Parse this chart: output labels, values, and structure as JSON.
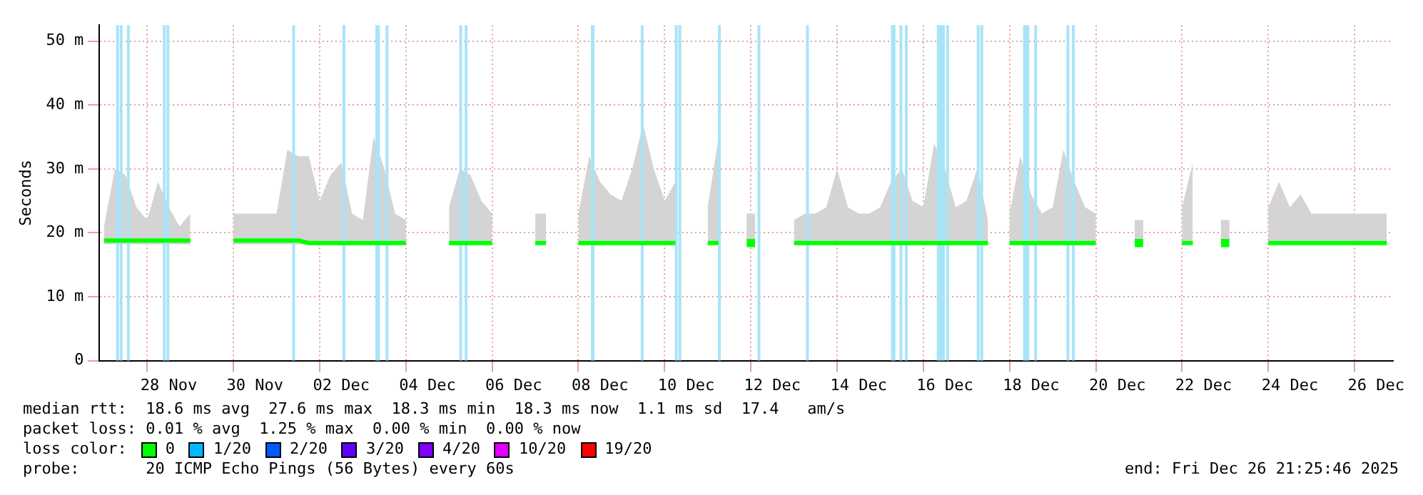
{
  "chart_data": {
    "type": "line",
    "ylabel": "Seconds",
    "legend_title": "loss color:",
    "legend": "bottom",
    "grid": true,
    "xlim": [
      "2025-11-26T21:26",
      "2025-12-26T21:26"
    ],
    "xticks": [
      {
        "value": "2025-11-28T00:00",
        "label": null
      },
      {
        "value": "2025-11-28T12:00",
        "label": "28 Nov"
      },
      {
        "value": "2025-11-30T00:00",
        "label": null
      },
      {
        "value": "2025-11-30T12:00",
        "label": "30 Nov"
      },
      {
        "value": "2025-12-02T00:00",
        "label": null
      },
      {
        "value": "2025-12-02T12:00",
        "label": "02 Dec"
      },
      {
        "value": "2025-12-04T00:00",
        "label": null
      },
      {
        "value": "2025-12-04T12:00",
        "label": "04 Dec"
      },
      {
        "value": "2025-12-06T00:00",
        "label": null
      },
      {
        "value": "2025-12-06T12:00",
        "label": "06 Dec"
      },
      {
        "value": "2025-12-08T00:00",
        "label": null
      },
      {
        "value": "2025-12-08T12:00",
        "label": "08 Dec"
      },
      {
        "value": "2025-12-10T00:00",
        "label": null
      },
      {
        "value": "2025-12-10T12:00",
        "label": "10 Dec"
      },
      {
        "value": "2025-12-12T00:00",
        "label": null
      },
      {
        "value": "2025-12-12T12:00",
        "label": "12 Dec"
      },
      {
        "value": "2025-12-14T00:00",
        "label": null
      },
      {
        "value": "2025-12-14T12:00",
        "label": "14 Dec"
      },
      {
        "value": "2025-12-16T00:00",
        "label": null
      },
      {
        "value": "2025-12-16T12:00",
        "label": "16 Dec"
      },
      {
        "value": "2025-12-18T00:00",
        "label": null
      },
      {
        "value": "2025-12-18T12:00",
        "label": "18 Dec"
      },
      {
        "value": "2025-12-20T00:00",
        "label": null
      },
      {
        "value": "2025-12-20T12:00",
        "label": "20 Dec"
      },
      {
        "value": "2025-12-22T00:00",
        "label": null
      },
      {
        "value": "2025-12-22T12:00",
        "label": "22 Dec"
      },
      {
        "value": "2025-12-24T00:00",
        "label": null
      },
      {
        "value": "2025-12-24T12:00",
        "label": "24 Dec"
      },
      {
        "value": "2025-12-26T00:00",
        "label": null
      },
      {
        "value": "2025-12-26T12:00",
        "label": "26 Dec"
      }
    ],
    "ylim": [
      0,
      52.5
    ],
    "yticks": [
      0,
      {
        "value": 10,
        "label": "10 m"
      },
      {
        "value": 20,
        "label": "20 m"
      },
      {
        "value": 30,
        "label": "30 m"
      },
      {
        "value": 40,
        "label": "40 m"
      },
      {
        "value": 50,
        "label": "50 m"
      }
    ],
    "x": [
      "2025-11-27T00:00",
      "2025-11-27T06:00",
      "2025-11-27T12:00",
      "2025-11-27T18:00",
      "2025-11-28T00:00",
      "2025-11-28T06:00",
      "2025-11-28T12:00",
      "2025-11-28T18:00",
      "2025-11-29T00:00",
      "2025-11-29T06:00",
      "2025-11-29T12:00",
      "2025-11-29T18:00",
      "2025-11-30T00:00",
      "2025-11-30T06:00",
      "2025-11-30T12:00",
      "2025-11-30T18:00",
      "2025-12-01T00:00",
      "2025-12-01T06:00",
      "2025-12-01T12:00",
      "2025-12-01T18:00",
      "2025-12-02T00:00",
      "2025-12-02T06:00",
      "2025-12-02T12:00",
      "2025-12-02T18:00",
      "2025-12-03T00:00",
      "2025-12-03T06:00",
      "2025-12-03T12:00",
      "2025-12-03T18:00",
      "2025-12-04T00:00",
      "2025-12-04T06:00",
      "2025-12-04T12:00",
      "2025-12-04T18:00",
      "2025-12-05T00:00",
      "2025-12-05T06:00",
      "2025-12-05T12:00",
      "2025-12-05T18:00",
      "2025-12-06T00:00",
      "2025-12-06T06:00",
      "2025-12-06T12:00",
      "2025-12-06T18:00",
      "2025-12-07T00:00",
      "2025-12-07T06:00",
      "2025-12-07T12:00",
      "2025-12-07T18:00",
      "2025-12-08T00:00",
      "2025-12-08T06:00",
      "2025-12-08T12:00",
      "2025-12-08T18:00",
      "2025-12-09T00:00",
      "2025-12-09T06:00",
      "2025-12-09T12:00",
      "2025-12-09T18:00",
      "2025-12-10T00:00",
      "2025-12-10T06:00",
      "2025-12-10T12:00",
      "2025-12-10T18:00",
      "2025-12-11T00:00",
      "2025-12-11T06:00",
      "2025-12-11T12:00",
      "2025-12-11T18:00",
      "2025-12-12T00:00",
      "2025-12-12T06:00",
      "2025-12-12T12:00",
      "2025-12-12T18:00",
      "2025-12-13T00:00",
      "2025-12-13T06:00",
      "2025-12-13T12:00",
      "2025-12-13T18:00",
      "2025-12-14T00:00",
      "2025-12-14T06:00",
      "2025-12-14T12:00",
      "2025-12-14T18:00",
      "2025-12-15T00:00",
      "2025-12-15T06:00",
      "2025-12-15T12:00",
      "2025-12-15T18:00",
      "2025-12-16T00:00",
      "2025-12-16T06:00",
      "2025-12-16T12:00",
      "2025-12-16T18:00",
      "2025-12-17T00:00",
      "2025-12-17T06:00",
      "2025-12-17T12:00",
      "2025-12-17T18:00",
      "2025-12-18T00:00",
      "2025-12-18T06:00",
      "2025-12-18T12:00",
      "2025-12-18T18:00",
      "2025-12-19T00:00",
      "2025-12-19T06:00",
      "2025-12-19T12:00",
      "2025-12-19T18:00",
      "2025-12-20T00:00",
      "2025-12-20T06:00",
      "2025-12-20T12:00",
      "2025-12-20T18:00",
      "2025-12-21T00:00",
      "2025-12-21T06:00",
      "2025-12-21T12:00",
      "2025-12-21T18:00",
      "2025-12-22T00:00",
      "2025-12-22T06:00",
      "2025-12-22T12:00",
      "2025-12-22T18:00",
      "2025-12-23T00:00",
      "2025-12-23T06:00",
      "2025-12-23T12:00",
      "2025-12-23T18:00",
      "2025-12-24T00:00",
      "2025-12-24T06:00",
      "2025-12-24T12:00",
      "2025-12-24T18:00",
      "2025-12-25T00:00",
      "2025-12-25T06:00",
      "2025-12-25T12:00",
      "2025-12-25T18:00",
      "2025-12-26T00:00",
      "2025-12-26T06:00",
      "2025-12-26T12:00",
      "2025-12-26T18:00"
    ],
    "series": [
      {
        "name": "0",
        "color": "#00ff00",
        "values": [
          18.8,
          18.8,
          18.8,
          18.8,
          18.8,
          18.8,
          18.8,
          18.8,
          18.8,
          null,
          null,
          null,
          18.8,
          18.8,
          18.8,
          18.8,
          18.8,
          18.8,
          18.8,
          18.4,
          18.4,
          18.4,
          18.4,
          18.4,
          18.4,
          18.4,
          18.4,
          18.4,
          18.4,
          null,
          null,
          null,
          18.4,
          18.4,
          18.4,
          18.4,
          18.4,
          null,
          null,
          null,
          18.4,
          18.4,
          null,
          null,
          18.4,
          18.4,
          18.4,
          18.4,
          18.4,
          18.4,
          18.4,
          18.4,
          18.4,
          18.4,
          null,
          null,
          18.4,
          18.4,
          null,
          null,
          18.4,
          null,
          null,
          null,
          18.4,
          18.4,
          18.4,
          18.4,
          18.4,
          18.4,
          18.4,
          18.4,
          18.4,
          18.4,
          18.4,
          18.4,
          18.4,
          18.4,
          18.4,
          18.4,
          18.4,
          18.4,
          18.4,
          null,
          18.4,
          18.4,
          18.4,
          18.4,
          18.4,
          18.4,
          18.4,
          18.4,
          18.4,
          null,
          null,
          null,
          18.4,
          null,
          null,
          null,
          18.4,
          18.4,
          null,
          null,
          18.4,
          null,
          null,
          null,
          18.4,
          18.4,
          18.4,
          18.4,
          18.4,
          18.4,
          18.4,
          18.4,
          18.4,
          18.4,
          18.4,
          18.4
        ],
        "lower": [
          18.2,
          18.2,
          18.2,
          18.2,
          18.2,
          18.2,
          18.2,
          18.2,
          18.2,
          null,
          null,
          null,
          18.2,
          18.2,
          18.2,
          18.2,
          18.2,
          18.2,
          18.2,
          18.2,
          18.2,
          18.2,
          18.2,
          18.2,
          18.2,
          18.2,
          18.2,
          18.2,
          18.2,
          null,
          null,
          null,
          18.2,
          18.2,
          18.2,
          18.2,
          18.2,
          null,
          null,
          null,
          18.2,
          18.2,
          null,
          null,
          18.2,
          18.2,
          18.2,
          18.2,
          18.2,
          18.2,
          18.2,
          18.2,
          18.2,
          18.2,
          null,
          null,
          18.2,
          18.2,
          null,
          null,
          18.2,
          null,
          null,
          null,
          18.2,
          18.2,
          18.2,
          18.2,
          18.2,
          18.2,
          18.2,
          18.2,
          18.2,
          18.2,
          18.2,
          18.2,
          18.2,
          18.2,
          18.2,
          18.2,
          18.2,
          18.2,
          18.2,
          null,
          18.2,
          18.2,
          18.2,
          18.2,
          18.2,
          18.2,
          18.2,
          18.2,
          18.2,
          null,
          null,
          null,
          18.2,
          null,
          null,
          null,
          18.2,
          18.2,
          null,
          null,
          18.2,
          null,
          null,
          null,
          18.2,
          18.2,
          18.2,
          18.2,
          18.2,
          18.2,
          18.2,
          18.2,
          18.2,
          18.2,
          18.2,
          18.2
        ],
        "upper": [
          21,
          30,
          29,
          24,
          22,
          28,
          24,
          21,
          23,
          null,
          null,
          null,
          23,
          23,
          23,
          23,
          23,
          33,
          32,
          32,
          25,
          29,
          31,
          23,
          22,
          35,
          30,
          23,
          22,
          null,
          null,
          null,
          24,
          30,
          29,
          25,
          23,
          null,
          null,
          null,
          23,
          23,
          null,
          null,
          23,
          32,
          28,
          26,
          25,
          30,
          37,
          30,
          25,
          28,
          null,
          null,
          24,
          35,
          null,
          null,
          23,
          null,
          null,
          null,
          22,
          23,
          23,
          24,
          30,
          24,
          23,
          23,
          24,
          28,
          30,
          25,
          24,
          34,
          30,
          24,
          25,
          30,
          22,
          null,
          23,
          32,
          26,
          23,
          24,
          33,
          28,
          24,
          23,
          null,
          null,
          null,
          22,
          null,
          null,
          null,
          24,
          31,
          null,
          null,
          22,
          null,
          null,
          null,
          24,
          28,
          24,
          26,
          23,
          23,
          23,
          23,
          23,
          23,
          23,
          23
        ]
      },
      {
        "name": "1/20",
        "color": "#00b8ff",
        "values": [
          null,
          null,
          null,
          null,
          null,
          null,
          null,
          null,
          null,
          null,
          null,
          null,
          null,
          null,
          null,
          null,
          null,
          null,
          null,
          null,
          null,
          null,
          null,
          null,
          null,
          null,
          null,
          null,
          null,
          null,
          null,
          null,
          null,
          null,
          null,
          null,
          null,
          null,
          null,
          null,
          null,
          null,
          null,
          null,
          null,
          null,
          null,
          null,
          null,
          null,
          null,
          null,
          null,
          null,
          null,
          null,
          null,
          null,
          null,
          null,
          null,
          null,
          null,
          null,
          null,
          null,
          null,
          null,
          null,
          null,
          null,
          null,
          null,
          null,
          null,
          null,
          null,
          null,
          null,
          null,
          null,
          null,
          null,
          null,
          null,
          null,
          null,
          null,
          null,
          null,
          null,
          null,
          null,
          null,
          null,
          null,
          null,
          null,
          null,
          null,
          null,
          null,
          null,
          null,
          null,
          null,
          null,
          null,
          null,
          null,
          null,
          null,
          null,
          null,
          null,
          null,
          null,
          null,
          null,
          null
        ]
      },
      {
        "name": "2/20",
        "color": "#0059ff",
        "values": [
          null,
          null,
          null,
          null,
          null,
          null,
          null,
          null,
          null,
          null,
          null,
          null,
          null,
          null,
          null,
          null,
          null,
          null,
          null,
          null,
          null,
          null,
          null,
          null,
          null,
          null,
          null,
          null,
          null,
          null,
          null,
          null,
          null,
          null,
          null,
          null,
          null,
          null,
          null,
          null,
          null,
          null,
          null,
          null,
          null,
          null,
          null,
          null,
          null,
          null,
          null,
          null,
          null,
          null,
          null,
          null,
          null,
          null,
          null,
          null,
          null,
          null,
          null,
          null,
          null,
          null,
          null,
          null,
          null,
          null,
          null,
          null,
          null,
          null,
          null,
          null,
          null,
          null,
          null,
          null,
          null,
          null,
          null,
          null,
          null,
          null,
          null,
          null,
          null,
          null,
          null,
          null,
          null,
          null,
          null,
          null,
          null,
          null,
          null,
          null,
          null,
          null,
          null,
          null,
          null,
          null,
          null,
          null,
          null,
          null,
          null,
          null,
          null,
          null,
          null,
          null,
          null,
          null,
          null,
          null
        ]
      },
      {
        "name": "3/20",
        "color": "#5e00ff",
        "values": [
          null,
          null,
          null,
          null,
          null,
          null,
          null,
          null,
          null,
          null,
          null,
          null,
          null,
          null,
          null,
          null,
          null,
          null,
          null,
          null,
          null,
          null,
          null,
          null,
          null,
          null,
          null,
          null,
          null,
          null,
          null,
          null,
          null,
          null,
          null,
          null,
          null,
          null,
          null,
          null,
          null,
          null,
          null,
          null,
          null,
          null,
          null,
          null,
          null,
          null,
          null,
          null,
          null,
          null,
          null,
          null,
          null,
          null,
          null,
          null,
          null,
          null,
          null,
          null,
          null,
          null,
          null,
          null,
          null,
          null,
          null,
          null,
          null,
          null,
          null,
          null,
          null,
          null,
          null,
          null,
          null,
          null,
          null,
          null,
          null,
          null,
          null,
          null,
          null,
          null,
          null,
          null,
          null,
          null,
          null,
          null,
          null,
          null,
          null,
          null,
          null,
          null,
          null,
          null,
          null,
          null,
          null,
          null,
          null,
          null,
          null,
          null,
          null,
          null,
          null,
          null,
          null,
          null,
          null,
          null
        ]
      },
      {
        "name": "4/20",
        "color": "#7e00ff",
        "values": [
          null,
          null,
          null,
          null,
          null,
          null,
          null,
          null,
          null,
          null,
          null,
          null,
          null,
          null,
          null,
          null,
          null,
          null,
          null,
          null,
          null,
          null,
          null,
          null,
          null,
          null,
          null,
          null,
          null,
          null,
          null,
          null,
          null,
          null,
          null,
          null,
          null,
          null,
          null,
          null,
          null,
          null,
          null,
          null,
          null,
          null,
          null,
          null,
          null,
          null,
          null,
          null,
          null,
          null,
          null,
          null,
          null,
          null,
          null,
          null,
          null,
          null,
          null,
          null,
          null,
          null,
          null,
          null,
          null,
          null,
          null,
          null,
          null,
          null,
          null,
          null,
          null,
          null,
          null,
          null,
          null,
          null,
          null,
          null,
          null,
          null,
          null,
          null,
          null,
          null,
          null,
          null,
          null,
          null,
          null,
          null,
          null,
          null,
          null,
          null,
          null,
          null,
          null,
          null,
          null,
          null,
          null,
          null,
          null,
          null,
          null,
          null,
          null,
          null,
          null,
          null,
          null,
          null,
          null,
          null
        ]
      },
      {
        "name": "10/20",
        "color": "#dd00ff",
        "values": [
          null,
          null,
          null,
          null,
          null,
          null,
          null,
          null,
          null,
          null,
          null,
          null,
          null,
          null,
          null,
          null,
          null,
          null,
          null,
          null,
          null,
          null,
          null,
          null,
          null,
          null,
          null,
          null,
          null,
          null,
          null,
          null,
          null,
          null,
          null,
          null,
          null,
          null,
          null,
          null,
          null,
          null,
          null,
          null,
          null,
          null,
          null,
          null,
          null,
          null,
          null,
          null,
          null,
          null,
          null,
          null,
          null,
          null,
          null,
          null,
          null,
          null,
          null,
          null,
          null,
          null,
          null,
          null,
          null,
          null,
          null,
          null,
          null,
          null,
          null,
          null,
          null,
          null,
          null,
          null,
          null,
          null,
          null,
          null,
          null,
          null,
          null,
          null,
          null,
          null,
          null,
          null,
          null,
          null,
          null,
          null,
          null,
          null,
          null,
          null,
          null,
          null,
          null,
          null,
          null,
          null,
          null,
          null,
          null,
          null,
          null,
          null,
          null,
          null,
          null,
          null,
          null,
          null,
          null,
          null
        ]
      },
      {
        "name": "19/20",
        "color": "#ff0000",
        "values": [
          null,
          null,
          null,
          null,
          null,
          null,
          null,
          null,
          null,
          null,
          null,
          null,
          null,
          null,
          null,
          null,
          null,
          null,
          null,
          null,
          null,
          null,
          null,
          null,
          null,
          null,
          null,
          null,
          null,
          null,
          null,
          null,
          null,
          null,
          null,
          null,
          null,
          null,
          null,
          null,
          null,
          null,
          null,
          null,
          null,
          null,
          null,
          null,
          null,
          null,
          null,
          null,
          null,
          null,
          null,
          null,
          null,
          null,
          null,
          null,
          null,
          null,
          null,
          null,
          null,
          null,
          null,
          null,
          null,
          null,
          null,
          null,
          null,
          null,
          null,
          null,
          null,
          null,
          null,
          null,
          null,
          null,
          null,
          null,
          null,
          null,
          null,
          null,
          null,
          null,
          null,
          null,
          null,
          null,
          null,
          null,
          null,
          null,
          null,
          null,
          null,
          null,
          null,
          null,
          null,
          null,
          null,
          null,
          null,
          null,
          null,
          null,
          null,
          null,
          null,
          null,
          null,
          null,
          null,
          null
        ]
      }
    ],
    "bands": [
      {
        "axis": "x",
        "from": "2025-11-27T07:00",
        "to": "2025-11-27T08:00",
        "color": "#a8e4f8"
      },
      {
        "axis": "x",
        "from": "2025-11-27T09:00",
        "to": "2025-11-27T10:00",
        "color": "#a8e4f8"
      },
      {
        "axis": "x",
        "from": "2025-11-27T13:00",
        "to": "2025-11-27T14:00",
        "color": "#a8e4f8"
      },
      {
        "axis": "x",
        "from": "2025-11-28T09:00",
        "to": "2025-11-28T10:00",
        "color": "#a8e4f8"
      },
      {
        "axis": "x",
        "from": "2025-11-28T11:00",
        "to": "2025-11-28T12:00",
        "color": "#a8e4f8"
      },
      {
        "axis": "x",
        "from": "2025-12-01T09:00",
        "to": "2025-12-01T10:00",
        "color": "#a8e4f8"
      },
      {
        "axis": "x",
        "from": "2025-12-02T13:00",
        "to": "2025-12-02T14:00",
        "color": "#a8e4f8"
      },
      {
        "axis": "x",
        "from": "2025-12-03T07:00",
        "to": "2025-12-03T09:30",
        "color": "#a8e4f8"
      },
      {
        "axis": "x",
        "from": "2025-12-03T13:00",
        "to": "2025-12-03T14:00",
        "color": "#a8e4f8"
      },
      {
        "axis": "x",
        "from": "2025-12-05T06:00",
        "to": "2025-12-05T07:00",
        "color": "#a8e4f8"
      },
      {
        "axis": "x",
        "from": "2025-12-05T09:00",
        "to": "2025-12-05T10:00",
        "color": "#a8e4f8"
      },
      {
        "axis": "x",
        "from": "2025-12-08T07:00",
        "to": "2025-12-08T09:00",
        "color": "#a8e4f8"
      },
      {
        "axis": "x",
        "from": "2025-12-09T11:00",
        "to": "2025-12-09T12:00",
        "color": "#a8e4f8"
      },
      {
        "axis": "x",
        "from": "2025-12-10T06:00",
        "to": "2025-12-10T07:00",
        "color": "#a8e4f8"
      },
      {
        "axis": "x",
        "from": "2025-12-10T08:00",
        "to": "2025-12-10T09:00",
        "color": "#a8e4f8"
      },
      {
        "axis": "x",
        "from": "2025-12-11T06:00",
        "to": "2025-12-11T07:00",
        "color": "#a8e4f8"
      },
      {
        "axis": "x",
        "from": "2025-12-12T04:00",
        "to": "2025-12-12T05:00",
        "color": "#a8e4f8"
      },
      {
        "axis": "x",
        "from": "2025-12-13T07:00",
        "to": "2025-12-13T08:00",
        "color": "#a8e4f8"
      },
      {
        "axis": "x",
        "from": "2025-12-15T06:00",
        "to": "2025-12-15T08:30",
        "color": "#a8e4f8"
      },
      {
        "axis": "x",
        "from": "2025-12-15T11:00",
        "to": "2025-12-15T12:00",
        "color": "#a8e4f8"
      },
      {
        "axis": "x",
        "from": "2025-12-15T14:00",
        "to": "2025-12-15T15:00",
        "color": "#a8e4f8"
      },
      {
        "axis": "x",
        "from": "2025-12-16T07:30",
        "to": "2025-12-16T12:00",
        "color": "#a8e4f8"
      },
      {
        "axis": "x",
        "from": "2025-12-16T13:00",
        "to": "2025-12-16T14:00",
        "color": "#a8e4f8"
      },
      {
        "axis": "x",
        "from": "2025-12-17T06:00",
        "to": "2025-12-17T07:00",
        "color": "#a8e4f8"
      },
      {
        "axis": "x",
        "from": "2025-12-17T08:00",
        "to": "2025-12-17T09:00",
        "color": "#a8e4f8"
      },
      {
        "axis": "x",
        "from": "2025-12-18T07:30",
        "to": "2025-12-18T11:00",
        "color": "#a8e4f8"
      },
      {
        "axis": "x",
        "from": "2025-12-18T14:00",
        "to": "2025-12-18T15:00",
        "color": "#a8e4f8"
      },
      {
        "axis": "x",
        "from": "2025-12-19T08:00",
        "to": "2025-12-19T09:00",
        "color": "#a8e4f8"
      },
      {
        "axis": "x",
        "from": "2025-12-19T11:00",
        "to": "2025-12-19T12:00",
        "color": "#a8e4f8"
      }
    ],
    "annotations": [
      "median rtt:  18.6 ms avg  27.6 ms max  18.3 ms min  18.3 ms now  1.1 ms sd  17.4   am/s",
      "packet loss: 0.01 % avg  1.25 % max  0.00 % min  0.00 % now",
      "probe:       20 ICMP Echo Pings (56 Bytes) every 60s",
      "end: Fri Dec 26 21:25:46 2025"
    ]
  }
}
